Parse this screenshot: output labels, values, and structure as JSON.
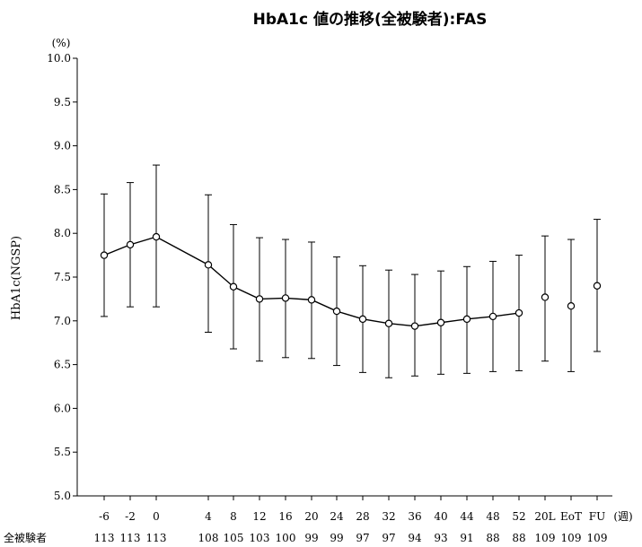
{
  "chart_data": {
    "type": "line",
    "title": "HbA1c 値の推移(全被験者):FAS",
    "ylabel": "HbA1c(NGSP)",
    "yunit": "(%)",
    "xunit": "(週)",
    "ylim": [
      5.0,
      10.0
    ],
    "yticks": [
      "5.0",
      "5.5",
      "6.0",
      "6.5",
      "7.0",
      "7.5",
      "8.0",
      "8.5",
      "9.0",
      "9.5",
      "10.0"
    ],
    "n_label": "全被験者",
    "points": [
      {
        "x": "-6",
        "mean": 7.75,
        "low": 7.05,
        "high": 8.45,
        "n": "113"
      },
      {
        "x": "-2",
        "mean": 7.87,
        "low": 7.16,
        "high": 8.58,
        "n": "113"
      },
      {
        "x": "0",
        "mean": 7.96,
        "low": 7.16,
        "high": 8.78,
        "n": "113"
      },
      {
        "x": "4",
        "mean": 7.64,
        "low": 6.87,
        "high": 8.44,
        "n": "108"
      },
      {
        "x": "8",
        "mean": 7.39,
        "low": 6.68,
        "high": 8.1,
        "n": "105"
      },
      {
        "x": "12",
        "mean": 7.25,
        "low": 6.54,
        "high": 7.95,
        "n": "103"
      },
      {
        "x": "16",
        "mean": 7.26,
        "low": 6.58,
        "high": 7.93,
        "n": "100"
      },
      {
        "x": "20",
        "mean": 7.24,
        "low": 6.57,
        "high": 7.9,
        "n": "99"
      },
      {
        "x": "24",
        "mean": 7.11,
        "low": 6.49,
        "high": 7.73,
        "n": "99"
      },
      {
        "x": "28",
        "mean": 7.02,
        "low": 6.41,
        "high": 7.63,
        "n": "97"
      },
      {
        "x": "32",
        "mean": 6.97,
        "low": 6.35,
        "high": 7.58,
        "n": "97"
      },
      {
        "x": "36",
        "mean": 6.94,
        "low": 6.37,
        "high": 7.53,
        "n": "94"
      },
      {
        "x": "40",
        "mean": 6.98,
        "low": 6.39,
        "high": 7.57,
        "n": "93"
      },
      {
        "x": "44",
        "mean": 7.02,
        "low": 6.4,
        "high": 7.62,
        "n": "91"
      },
      {
        "x": "48",
        "mean": 7.05,
        "low": 6.42,
        "high": 7.68,
        "n": "88"
      },
      {
        "x": "52",
        "mean": 7.09,
        "low": 6.43,
        "high": 7.75,
        "n": "88"
      },
      {
        "x": "20L",
        "mean": 7.27,
        "low": 6.54,
        "high": 7.97,
        "n": "109"
      },
      {
        "x": "EoT",
        "mean": 7.17,
        "low": 6.42,
        "high": 7.93,
        "n": "109"
      },
      {
        "x": "FU",
        "mean": 7.4,
        "low": 6.65,
        "high": 8.16,
        "n": "109"
      }
    ],
    "connected_through": "52",
    "grid": false,
    "legend": "none"
  }
}
